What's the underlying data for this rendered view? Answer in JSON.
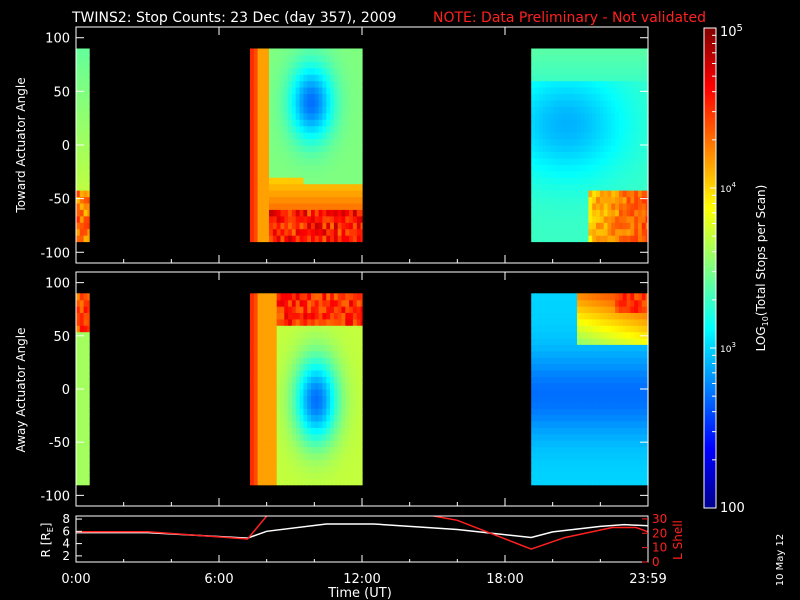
{
  "header": {
    "title": "TWINS2: Stop Counts: 23 Dec (day 357), 2009",
    "note": "NOTE: Data Preliminary - Not validated"
  },
  "footer": {
    "date_stamp": "10 May 12"
  },
  "colorbar": {
    "label": "LOG10(Total Stops per Scan)",
    "tick_labels": [
      "10^5",
      "10^4",
      "10^3",
      "100"
    ],
    "range": [
      100,
      100000
    ],
    "scale": "log",
    "colormap": "jet"
  },
  "chart_data": [
    {
      "type": "heatmap",
      "name": "toward-panel",
      "ylabel": "Toward Actuator Angle",
      "xlabel": "",
      "ylim": [
        -110,
        110
      ],
      "y_ticks": [
        100,
        50,
        0,
        -50,
        -100
      ],
      "x_ticks": [
        "0:00",
        "6:00",
        "12:00",
        "18:00",
        "23:59"
      ],
      "xlim_hours": [
        0,
        24
      ],
      "data_angle_range": [
        -90,
        90
      ],
      "data_blocks_hours": [
        [
          0,
          0.55
        ],
        [
          7.3,
          12.0
        ],
        [
          19.1,
          24
        ]
      ],
      "description_levels": "log10 counts; high (~4.5) near edges, low (~2.8) in center blue region"
    },
    {
      "type": "heatmap",
      "name": "away-panel",
      "ylabel": "Away Actuator Angle",
      "xlabel": "",
      "ylim": [
        -110,
        110
      ],
      "y_ticks": [
        100,
        50,
        0,
        -50,
        -100
      ],
      "x_ticks": [
        "0:00",
        "6:00",
        "12:00",
        "18:00",
        "23:59"
      ],
      "xlim_hours": [
        0,
        24
      ],
      "data_angle_range": [
        -90,
        90
      ],
      "data_blocks_hours": [
        [
          0,
          0.55
        ],
        [
          7.3,
          12.0
        ],
        [
          19.1,
          24
        ]
      ]
    },
    {
      "type": "line",
      "name": "orbit-panel",
      "xlabel": "Time (UT)",
      "x_ticks": [
        "0:00",
        "6:00",
        "12:00",
        "18:00",
        "23:59"
      ],
      "y_left_label": "R [RE]",
      "y_left_ticks": [
        8,
        6,
        4,
        2
      ],
      "y_left_lim": [
        1,
        8.5
      ],
      "y_right_label": "L Shell",
      "y_right_ticks": [
        30,
        20,
        10,
        0
      ],
      "y_right_lim": [
        0,
        32
      ],
      "series": [
        {
          "name": "R [RE]",
          "color": "#ffffff",
          "x": [
            0,
            3,
            7.2,
            8.0,
            10.5,
            12.5,
            16,
            19.1,
            20,
            22,
            23,
            24
          ],
          "y": [
            5.8,
            5.8,
            4.9,
            6.0,
            7.2,
            7.2,
            6.3,
            5.0,
            5.9,
            6.8,
            7.1,
            6.9
          ]
        },
        {
          "name": "L Shell",
          "color": "#ff2020",
          "x": [
            0,
            3,
            7.2,
            8.0
          ],
          "y": [
            21,
            21,
            16,
            32
          ]
        },
        {
          "name": "L Shell",
          "color": "#ff2020",
          "x": [
            15.0,
            16.0,
            19.1,
            20.5,
            22.5,
            23.5,
            24
          ],
          "y": [
            32,
            29,
            9,
            17,
            24,
            24,
            21
          ]
        }
      ]
    }
  ]
}
